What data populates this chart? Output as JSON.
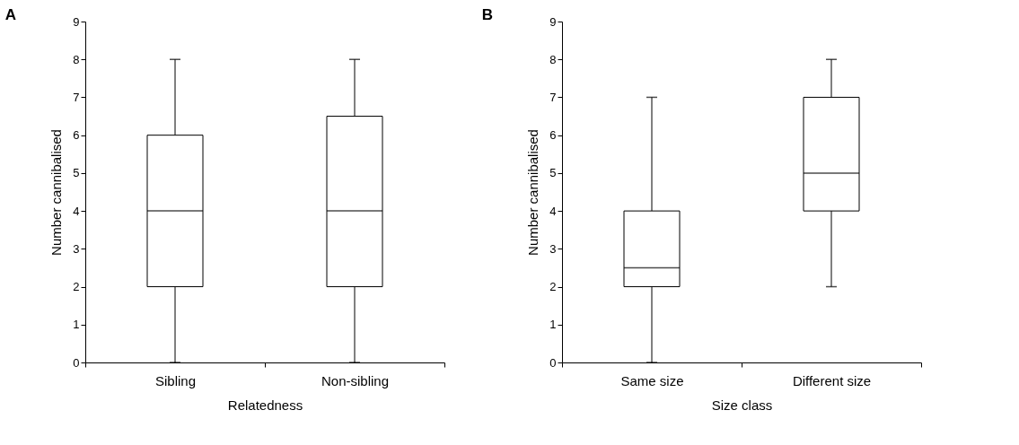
{
  "chart_data": [
    {
      "type": "box",
      "title": "A",
      "xlabel": "Relatedness",
      "ylabel": "Number cannibalised",
      "categories": [
        "Sibling",
        "Non-sibling"
      ],
      "boxes": [
        {
          "low": 0,
          "q1": 2,
          "median": 4,
          "q3": 6,
          "high": 8
        },
        {
          "low": 0,
          "q1": 2,
          "median": 4,
          "q3": 6.5,
          "high": 8
        }
      ],
      "ylim": [
        0,
        9
      ],
      "yticks": [
        0,
        1,
        2,
        3,
        4,
        5,
        6,
        7,
        8,
        9
      ],
      "grid": false
    },
    {
      "type": "box",
      "title": "B",
      "xlabel": "Size class",
      "ylabel": "Number cannibalised",
      "categories": [
        "Same size",
        "Different size"
      ],
      "boxes": [
        {
          "low": 0,
          "q1": 2,
          "median": 2.5,
          "q3": 4,
          "high": 7
        },
        {
          "low": 2,
          "q1": 4,
          "median": 5,
          "q3": 7,
          "high": 8
        }
      ],
      "ylim": [
        0,
        9
      ],
      "yticks": [
        0,
        1,
        2,
        3,
        4,
        5,
        6,
        7,
        8,
        9
      ],
      "grid": false
    }
  ]
}
